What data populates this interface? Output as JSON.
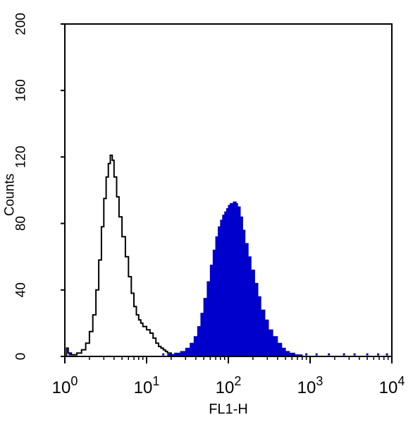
{
  "chart_data": {
    "type": "area",
    "title": "",
    "xlabel": "FL1-H",
    "ylabel": "Counts",
    "x_scale": "log",
    "xlim": [
      1,
      10000
    ],
    "ylim": [
      0,
      200
    ],
    "x_tick_labels": [
      {
        "base": "10",
        "exp": "0"
      },
      {
        "base": "10",
        "exp": "1"
      },
      {
        "base": "10",
        "exp": "2"
      },
      {
        "base": "10",
        "exp": "3"
      },
      {
        "base": "10",
        "exp": "4"
      }
    ],
    "x_tick_values": [
      1,
      10,
      100,
      1000,
      10000
    ],
    "y_ticks": [
      0,
      40,
      80,
      120,
      160,
      200
    ],
    "y_tick_labels": [
      "0",
      "40",
      "80",
      "120",
      "160",
      "200"
    ],
    "grid": false,
    "legend": "none",
    "series": [
      {
        "style": "outline",
        "color": "#000000",
        "points": [
          [
            1.0,
            0
          ],
          [
            1.05,
            5
          ],
          [
            1.1,
            2
          ],
          [
            1.2,
            1
          ],
          [
            1.4,
            2
          ],
          [
            1.6,
            4
          ],
          [
            1.8,
            8
          ],
          [
            2.0,
            15
          ],
          [
            2.2,
            25
          ],
          [
            2.4,
            40
          ],
          [
            2.6,
            58
          ],
          [
            2.8,
            78
          ],
          [
            3.0,
            95
          ],
          [
            3.2,
            108
          ],
          [
            3.4,
            116
          ],
          [
            3.6,
            121
          ],
          [
            3.8,
            118
          ],
          [
            4.0,
            108
          ],
          [
            4.3,
            96
          ],
          [
            4.6,
            84
          ],
          [
            5.0,
            72
          ],
          [
            5.5,
            60
          ],
          [
            6.0,
            48
          ],
          [
            6.5,
            38
          ],
          [
            7.0,
            30
          ],
          [
            7.5,
            25
          ],
          [
            8.0,
            22
          ],
          [
            8.5,
            20
          ],
          [
            9.0,
            18
          ],
          [
            10,
            16
          ],
          [
            11,
            14
          ],
          [
            12,
            11
          ],
          [
            13,
            8
          ],
          [
            14,
            6
          ],
          [
            15,
            5
          ],
          [
            16,
            4
          ],
          [
            17,
            3
          ],
          [
            18,
            2
          ],
          [
            20,
            1
          ],
          [
            23,
            0
          ]
        ]
      },
      {
        "style": "filled",
        "color": "#0000cc",
        "points": [
          [
            15,
            0
          ],
          [
            18,
            1
          ],
          [
            22,
            2
          ],
          [
            26,
            3
          ],
          [
            30,
            5
          ],
          [
            34,
            8
          ],
          [
            38,
            12
          ],
          [
            42,
            18
          ],
          [
            46,
            26
          ],
          [
            50,
            35
          ],
          [
            55,
            45
          ],
          [
            60,
            55
          ],
          [
            65,
            64
          ],
          [
            70,
            72
          ],
          [
            75,
            78
          ],
          [
            80,
            82
          ],
          [
            85,
            85
          ],
          [
            90,
            87
          ],
          [
            95,
            89
          ],
          [
            100,
            91
          ],
          [
            105,
            92
          ],
          [
            110,
            92
          ],
          [
            115,
            93
          ],
          [
            120,
            93
          ],
          [
            125,
            92
          ],
          [
            130,
            90
          ],
          [
            140,
            84
          ],
          [
            150,
            76
          ],
          [
            160,
            68
          ],
          [
            175,
            60
          ],
          [
            190,
            52
          ],
          [
            210,
            44
          ],
          [
            230,
            36
          ],
          [
            250,
            28
          ],
          [
            280,
            22
          ],
          [
            310,
            16
          ],
          [
            350,
            12
          ],
          [
            400,
            8
          ],
          [
            450,
            5
          ],
          [
            500,
            3
          ],
          [
            560,
            2
          ],
          [
            650,
            1
          ],
          [
            800,
            0
          ]
        ]
      }
    ],
    "scatter_marks": {
      "color": "#0000cc",
      "x": [
        1.08,
        1.15,
        16,
        19,
        24,
        900,
        1200,
        1700,
        2600,
        3500,
        5000,
        6800,
        8700
      ],
      "y": [
        3,
        1,
        1,
        1,
        1,
        1,
        1,
        1,
        1,
        1,
        1,
        1,
        1
      ]
    }
  }
}
